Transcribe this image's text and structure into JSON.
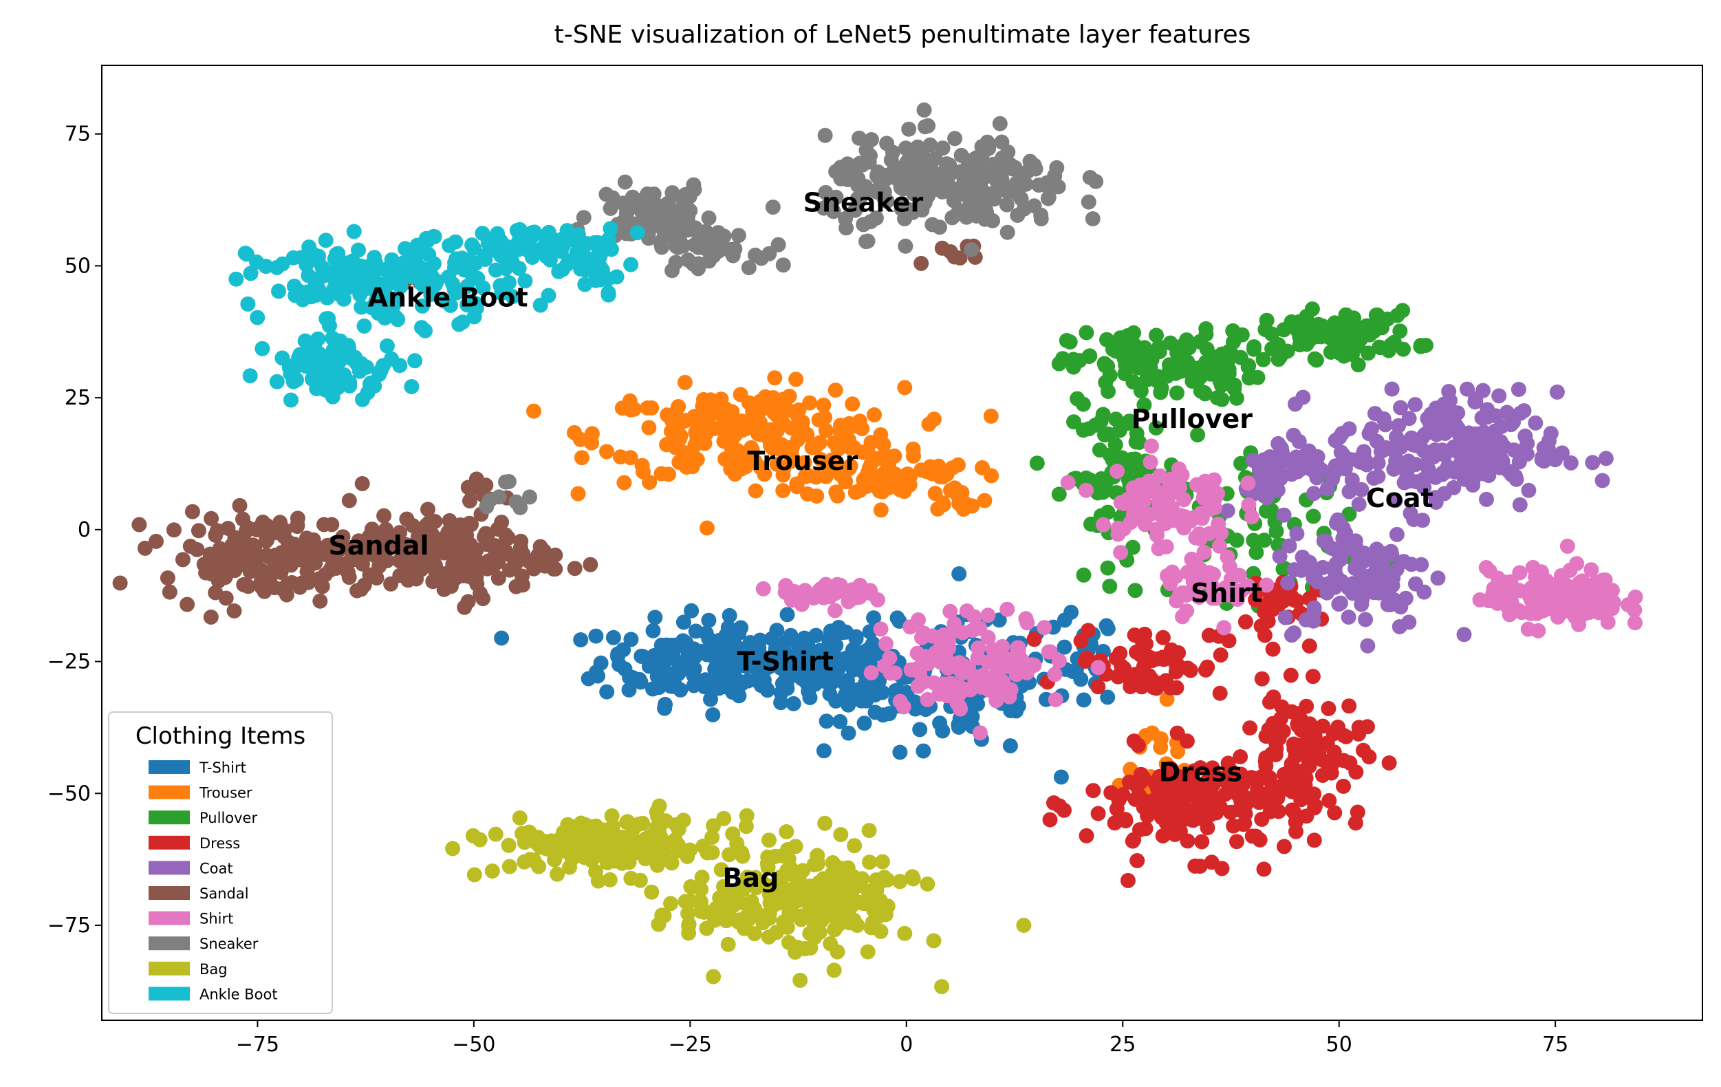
{
  "chart_data": {
    "type": "scatter",
    "title": "t-SNE visualization of LeNet5 penultimate layer features",
    "xlabel": "",
    "ylabel": "",
    "xlim": [
      -93,
      92
    ],
    "ylim": [
      -93,
      88
    ],
    "xticks": [
      -75,
      -50,
      -25,
      0,
      25,
      50,
      75
    ],
    "yticks": [
      -75,
      -50,
      -25,
      0,
      25,
      50,
      75
    ],
    "xtick_labels": [
      "−75",
      "−50",
      "−25",
      "0",
      "25",
      "50",
      "75"
    ],
    "ytick_labels": [
      "−75",
      "−50",
      "−25",
      "0",
      "25",
      "50",
      "75"
    ],
    "grid": false,
    "legend": {
      "title": "Clothing Items",
      "placement": "lower-left"
    },
    "series": [
      {
        "name": "T-Shirt",
        "color": "#1f77b4",
        "label_pos": [
          -14,
          -25
        ],
        "blobs": [
          [
            -20,
            -25,
            14,
            7,
            220
          ],
          [
            -5,
            -27,
            8,
            8,
            90
          ],
          [
            8,
            -30,
            8,
            12,
            90
          ],
          [
            20,
            -25,
            4,
            8,
            30
          ]
        ]
      },
      {
        "name": "Trouser",
        "color": "#ff7f0e",
        "label_pos": [
          -12,
          13
        ],
        "blobs": [
          [
            -18,
            18,
            16,
            8,
            220
          ],
          [
            -2,
            10,
            9,
            4,
            70
          ],
          [
            6,
            6,
            3,
            2,
            12
          ],
          [
            28,
            -45,
            6,
            10,
            25
          ]
        ]
      },
      {
        "name": "Pullover",
        "color": "#2ca02c",
        "label_pos": [
          33,
          21
        ],
        "blobs": [
          [
            30,
            31,
            10,
            6,
            130
          ],
          [
            50,
            37,
            8,
            4,
            90
          ],
          [
            25,
            10,
            6,
            12,
            90
          ],
          [
            42,
            0,
            10,
            12,
            60
          ]
        ]
      },
      {
        "name": "Dress",
        "color": "#d62728",
        "label_pos": [
          34,
          -46
        ],
        "blobs": [
          [
            34,
            -52,
            12,
            9,
            190
          ],
          [
            46,
            -42,
            6,
            10,
            90
          ],
          [
            28,
            -25,
            8,
            6,
            60
          ],
          [
            42,
            -15,
            5,
            6,
            30
          ]
        ]
      },
      {
        "name": "Coat",
        "color": "#9467bd",
        "label_pos": [
          57,
          6
        ],
        "blobs": [
          [
            62,
            15,
            12,
            10,
            210
          ],
          [
            52,
            -8,
            8,
            10,
            110
          ],
          [
            45,
            12,
            6,
            5,
            50
          ]
        ]
      },
      {
        "name": "Sandal",
        "color": "#8c564b",
        "label_pos": [
          -61,
          -3
        ],
        "blobs": [
          [
            -74,
            -5,
            11,
            7,
            160
          ],
          [
            -52,
            -5,
            10,
            7,
            150
          ],
          [
            -62,
            -4,
            6,
            4,
            40
          ],
          [
            -49,
            7,
            3,
            3,
            10
          ],
          [
            -58,
            48,
            5,
            2,
            8
          ],
          [
            3,
            53,
            7,
            2,
            8
          ]
        ]
      },
      {
        "name": "Shirt",
        "color": "#e377c2",
        "label_pos": [
          37,
          -12
        ],
        "blobs": [
          [
            75,
            -13,
            7,
            5,
            150
          ],
          [
            8,
            -25,
            10,
            8,
            120
          ],
          [
            -10,
            -12,
            5,
            2,
            40
          ],
          [
            30,
            5,
            7,
            8,
            90
          ],
          [
            35,
            -10,
            5,
            5,
            40
          ]
        ]
      },
      {
        "name": "Sneaker",
        "color": "#7f7f7f",
        "label_pos": [
          -5,
          62
        ],
        "blobs": [
          [
            5,
            65,
            13,
            8,
            240
          ],
          [
            -29,
            60,
            6,
            5,
            90
          ],
          [
            -23,
            53,
            5,
            3,
            40
          ],
          [
            -46,
            6,
            4,
            3,
            8
          ]
        ]
      },
      {
        "name": "Bag",
        "color": "#bcbd22",
        "label_pos": [
          -18,
          -66
        ],
        "blobs": [
          [
            -34,
            -60,
            12,
            5,
            160
          ],
          [
            -10,
            -70,
            10,
            10,
            190
          ],
          [
            -22,
            -72,
            6,
            5,
            40
          ]
        ]
      },
      {
        "name": "Ankle Boot",
        "color": "#17becf",
        "label_pos": [
          -53,
          44
        ],
        "blobs": [
          [
            -60,
            47,
            14,
            7,
            190
          ],
          [
            -66,
            31,
            7,
            5,
            80
          ],
          [
            -42,
            54,
            8,
            3,
            60
          ],
          [
            -36,
            50,
            4,
            4,
            25
          ]
        ]
      }
    ]
  }
}
